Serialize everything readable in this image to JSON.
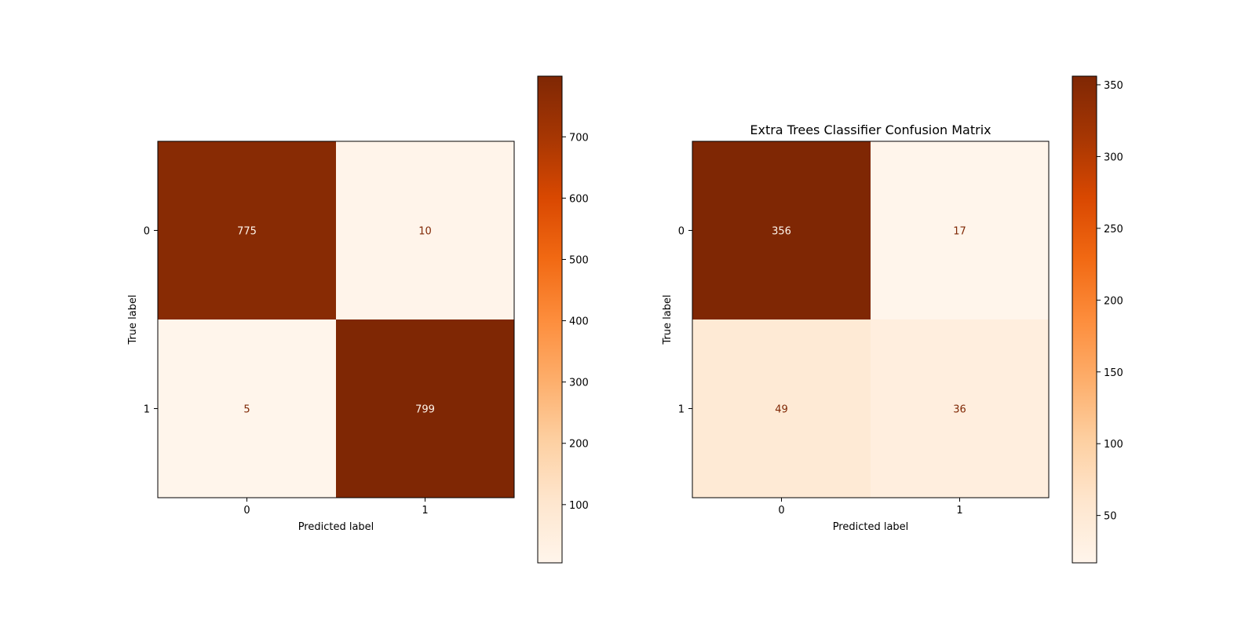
{
  "chart_data": [
    {
      "type": "heatmap",
      "title": "",
      "xlabel": "Predicted label",
      "ylabel": "True label",
      "x_categories": [
        "0",
        "1"
      ],
      "y_categories": [
        "0",
        "1"
      ],
      "values": [
        [
          775,
          10
        ],
        [
          5,
          799
        ]
      ],
      "colormap": "Oranges",
      "colorbar": {
        "range": [
          5,
          799
        ],
        "ticks": [
          100,
          200,
          300,
          400,
          500,
          600,
          700
        ]
      },
      "grid": false
    },
    {
      "type": "heatmap",
      "title": "Extra Trees Classifier Confusion Matrix",
      "xlabel": "Predicted label",
      "ylabel": "True label",
      "x_categories": [
        "0",
        "1"
      ],
      "y_categories": [
        "0",
        "1"
      ],
      "values": [
        [
          356,
          17
        ],
        [
          49,
          36
        ]
      ],
      "colormap": "Oranges",
      "colorbar": {
        "range": [
          17,
          356
        ],
        "ticks": [
          50,
          100,
          150,
          200,
          250,
          300,
          350
        ]
      },
      "grid": false
    }
  ]
}
